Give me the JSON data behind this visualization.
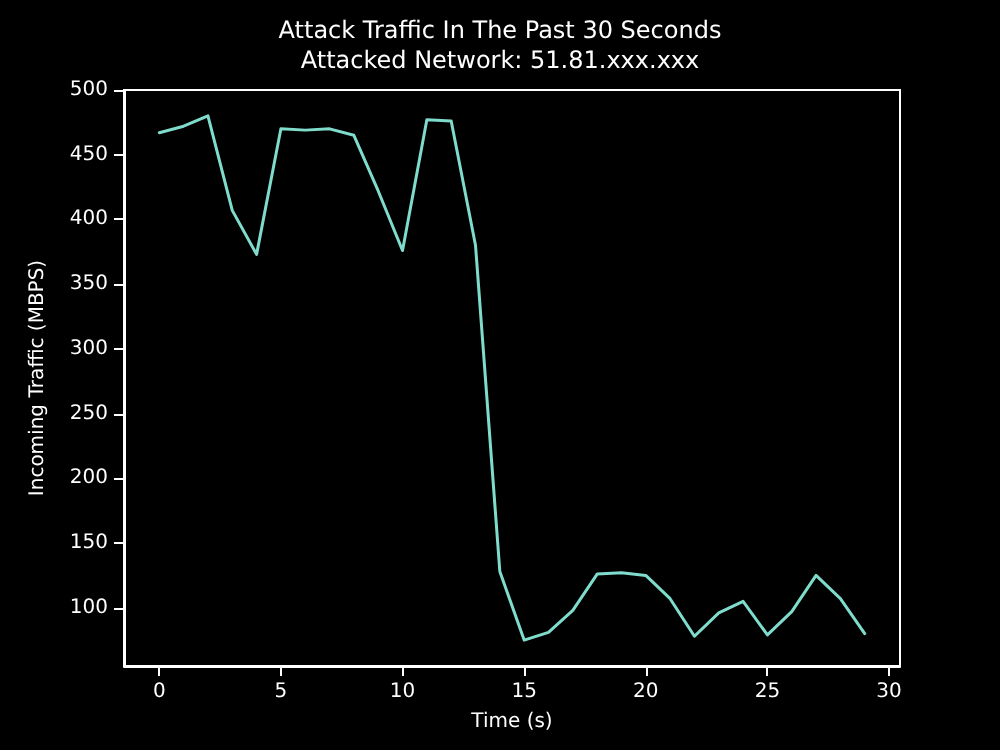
{
  "chart_data": {
    "type": "line",
    "title": "Attack Traffic In The Past 30 Seconds",
    "subtitle": "Attacked Network: 51.81.xxx.xxx",
    "xlabel": "Time (s)",
    "ylabel": "Incoming Traffic (MBPS)",
    "x": [
      0,
      1,
      2,
      3,
      4,
      5,
      6,
      7,
      8,
      9,
      10,
      11,
      12,
      13,
      14,
      15,
      16,
      17,
      18,
      19,
      20,
      21,
      22,
      23,
      24,
      25,
      26,
      27,
      28,
      29
    ],
    "series": [
      {
        "color": "#7fdccc",
        "values": [
          467,
          472,
          480,
          407,
          373,
          470,
          469,
          470,
          465,
          422,
          376,
          477,
          476,
          380,
          128,
          75,
          81,
          98,
          126,
          127,
          125,
          107,
          78,
          96,
          105,
          79,
          97,
          125,
          107,
          80
        ]
      }
    ],
    "xlim": [
      -1.45,
      30.45
    ],
    "ylim": [
      55,
      500
    ],
    "xticks": [
      0,
      5,
      10,
      15,
      20,
      25,
      30
    ],
    "yticks": [
      100,
      150,
      200,
      250,
      300,
      350,
      400,
      450,
      500
    ],
    "grid": false,
    "marker": "none",
    "line_style": "solid"
  }
}
